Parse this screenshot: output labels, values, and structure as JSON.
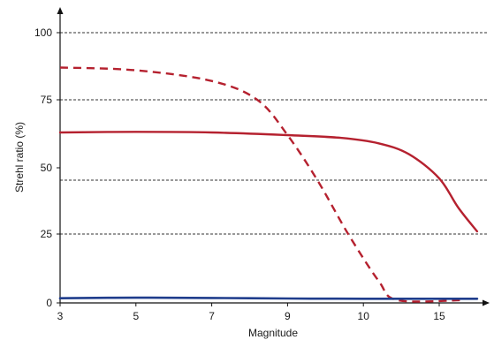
{
  "chart_data": {
    "type": "line",
    "xlabel": "Magnitude",
    "ylabel": "Strehl ratio (%)",
    "x_ticks": [
      "3",
      "5",
      "7",
      "9",
      "10",
      "15"
    ],
    "y_ticks": [
      "0",
      "25",
      "50",
      "75",
      "100"
    ],
    "grid": "horizontal dashed",
    "series": [
      {
        "style": "dashed",
        "color": "#b5212f",
        "points": [
          [
            0.0,
            87
          ],
          [
            1.0,
            86
          ],
          [
            2.0,
            82
          ],
          [
            2.6,
            75
          ],
          [
            3.0,
            62
          ],
          [
            3.4,
            45
          ],
          [
            3.8,
            25
          ],
          [
            4.2,
            8
          ],
          [
            4.45,
            1
          ],
          [
            5.3,
            1
          ]
        ]
      },
      {
        "style": "solid",
        "color": "#b5212f",
        "points": [
          [
            0.0,
            63
          ],
          [
            1.0,
            63.2
          ],
          [
            2.0,
            63
          ],
          [
            3.0,
            62
          ],
          [
            3.7,
            61
          ],
          [
            4.2,
            59
          ],
          [
            4.6,
            55
          ],
          [
            5.0,
            46
          ],
          [
            5.25,
            35
          ],
          [
            5.5,
            26
          ]
        ]
      },
      {
        "style": "solid",
        "color": "#1f3d8c",
        "points": [
          [
            0.0,
            1.7
          ],
          [
            1.0,
            1.9
          ],
          [
            2.0,
            1.8
          ],
          [
            3.0,
            1.6
          ],
          [
            4.0,
            1.5
          ],
          [
            5.5,
            1.5
          ]
        ]
      }
    ]
  }
}
